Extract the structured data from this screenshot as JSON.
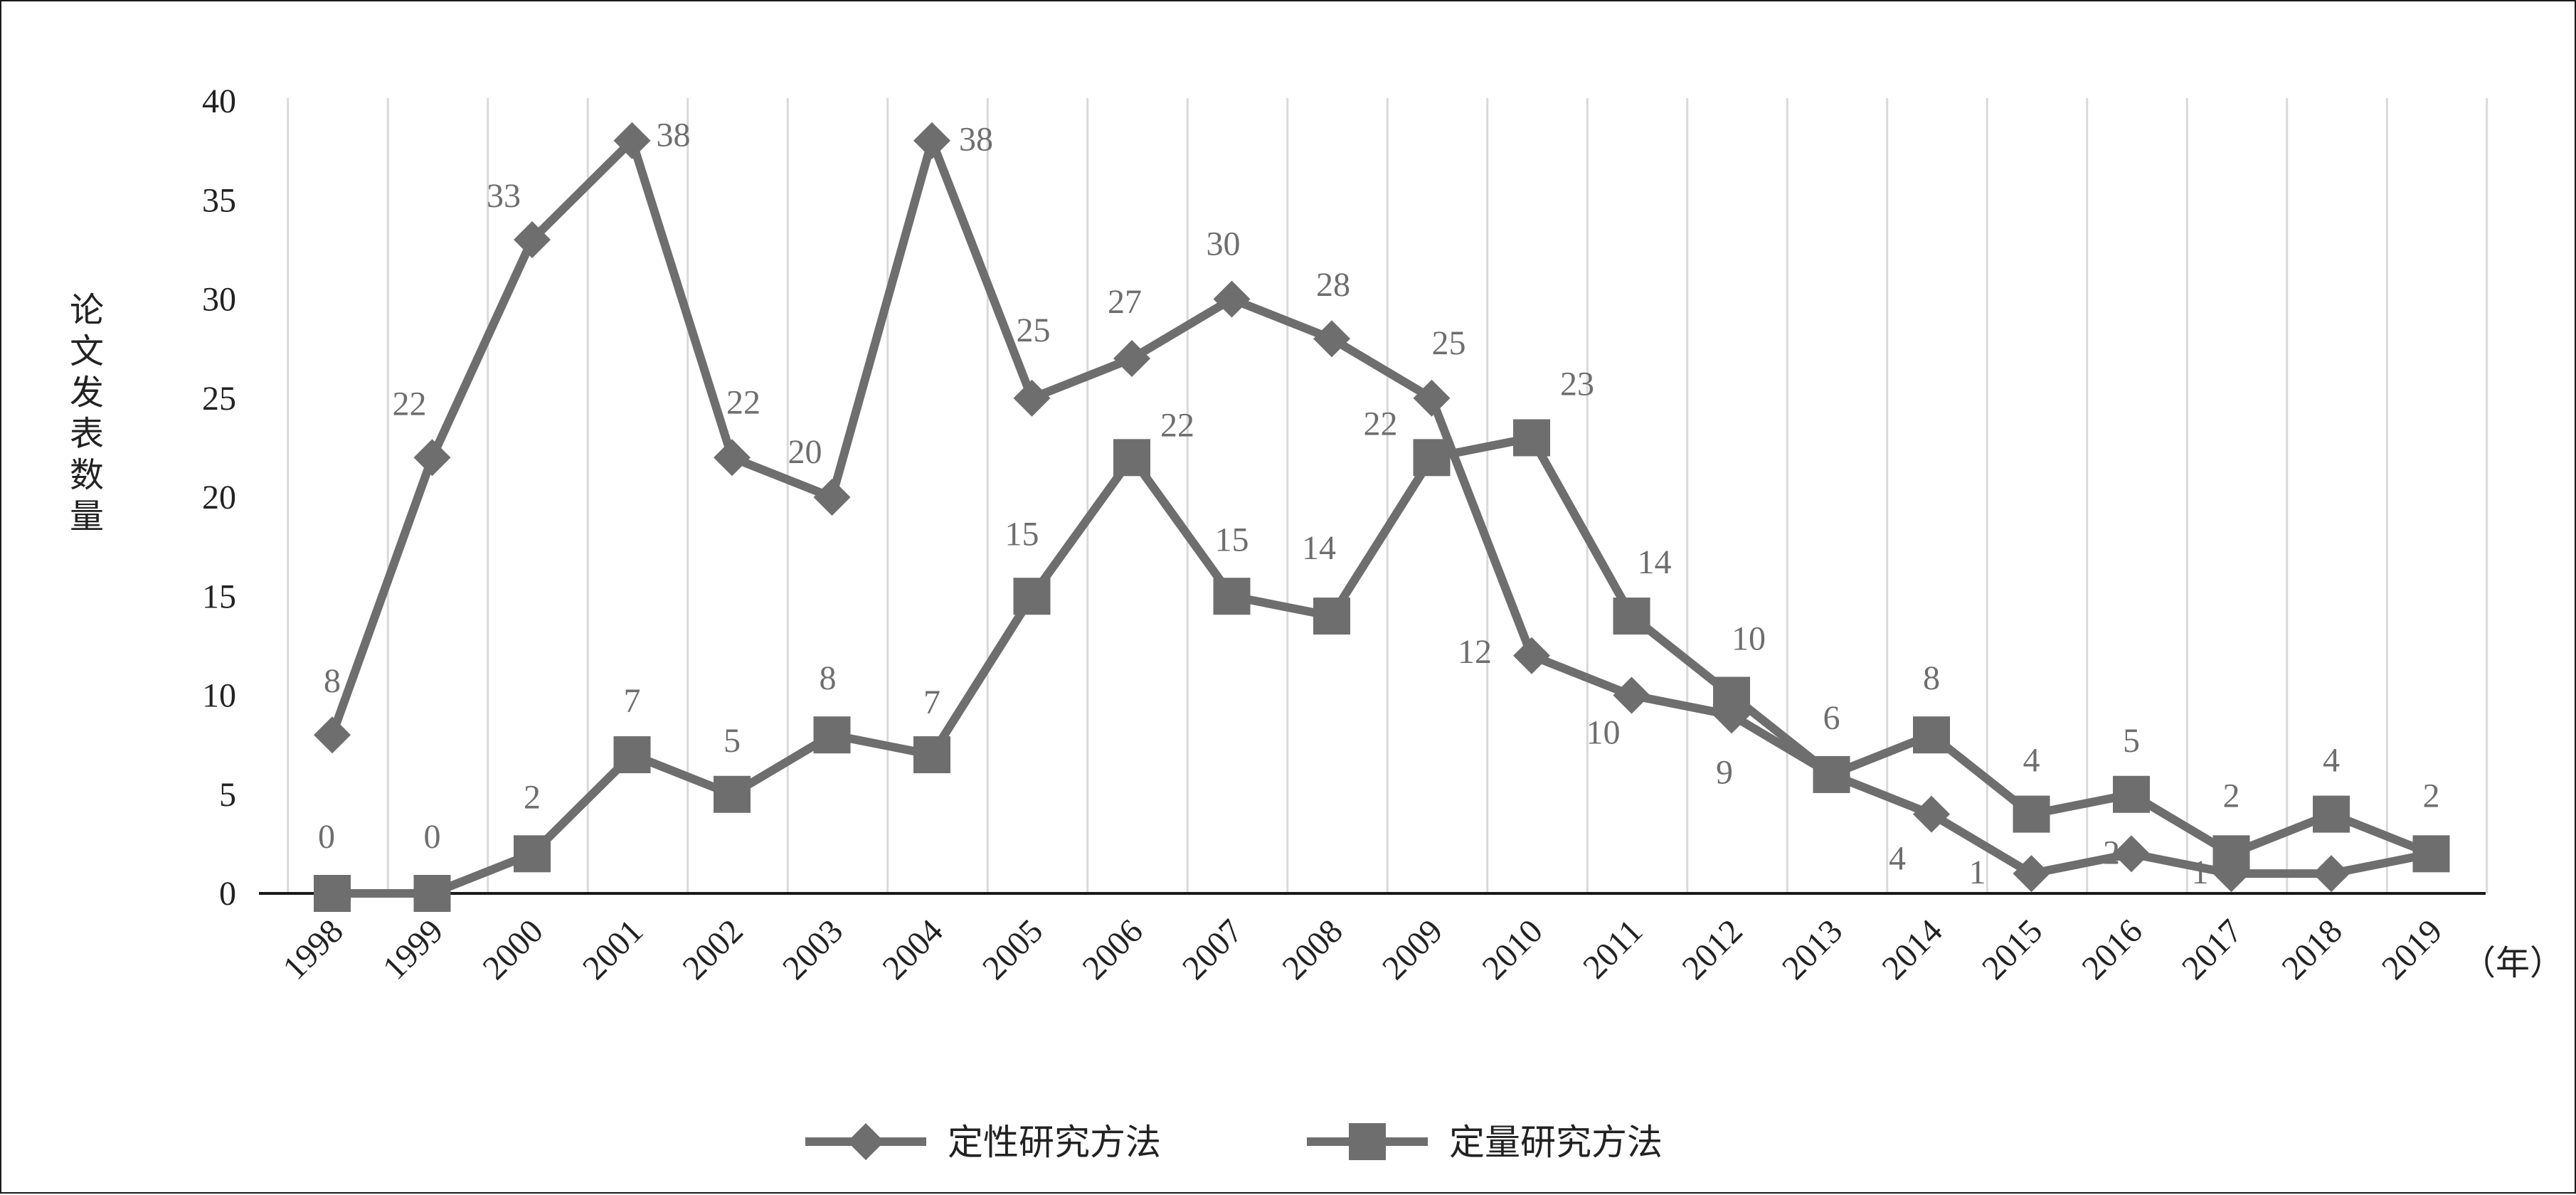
{
  "chart_data": {
    "type": "line",
    "x": [
      "1998",
      "1999",
      "2000",
      "2001",
      "2002",
      "2003",
      "2004",
      "2005",
      "2006",
      "2007",
      "2008",
      "2009",
      "2010",
      "2011",
      "2012",
      "2013",
      "2014",
      "2015",
      "2016",
      "2017",
      "2018",
      "2019"
    ],
    "x_unit": "（年）",
    "ylabel": "论文发表数量",
    "ylim": [
      0,
      40
    ],
    "yticks": [
      0,
      5,
      10,
      15,
      20,
      25,
      30,
      35,
      40
    ],
    "grid": "vertical",
    "legend_position": "bottom",
    "series": [
      {
        "name": "定性研究方法",
        "marker": "diamond",
        "color": "#6e6e6e",
        "values": [
          8,
          22,
          33,
          38,
          22,
          20,
          38,
          25,
          27,
          30,
          28,
          25,
          12,
          10,
          9,
          6,
          4,
          1,
          2,
          1,
          1,
          2
        ],
        "labels": [
          "8",
          "22",
          "33",
          "38",
          "22",
          "20",
          "38",
          "25",
          "27",
          "30",
          "28",
          "25",
          "12",
          "10",
          "9",
          "",
          "4",
          "1",
          "2",
          "1",
          "",
          ""
        ]
      },
      {
        "name": "定量研究方法",
        "marker": "square",
        "color": "#6e6e6e",
        "values": [
          0,
          0,
          2,
          7,
          5,
          8,
          7,
          15,
          22,
          15,
          14,
          22,
          23,
          14,
          10,
          6,
          8,
          4,
          5,
          2,
          4,
          2
        ],
        "labels": [
          "0",
          "0",
          "2",
          "7",
          "5",
          "8",
          "7",
          "15",
          "22",
          "15",
          "14",
          "22",
          "23",
          "14",
          "10",
          "6",
          "8",
          "4",
          "5",
          "2",
          "4",
          "2"
        ]
      }
    ]
  }
}
